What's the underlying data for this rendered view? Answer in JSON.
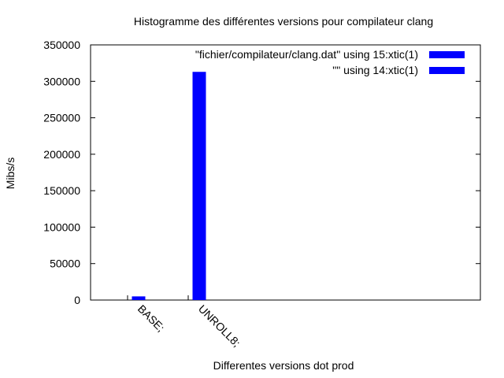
{
  "chart_data": {
    "type": "bar",
    "title": "Histogramme des différentes versions pour compilateur clang",
    "xlabel": "Differentes versions dot prod",
    "ylabel": "Mibs/s",
    "ylim": [
      0,
      350000
    ],
    "yticks": [
      "0",
      "50000",
      "100000",
      "150000",
      "200000",
      "250000",
      "300000",
      "350000"
    ],
    "categories": [
      "BASE;",
      "UNROLL8;"
    ],
    "series": [
      {
        "name": "\"fichier/compilateur/clang.dat\"  using 15:xtic(1)",
        "values": [
          5000,
          313000
        ],
        "color": "#0000ff"
      },
      {
        "name": "\"\" using 14:xtic(1)",
        "values": [
          0,
          0
        ],
        "color": "#0000ff"
      }
    ],
    "legend_position": "top-right",
    "grid": false
  }
}
